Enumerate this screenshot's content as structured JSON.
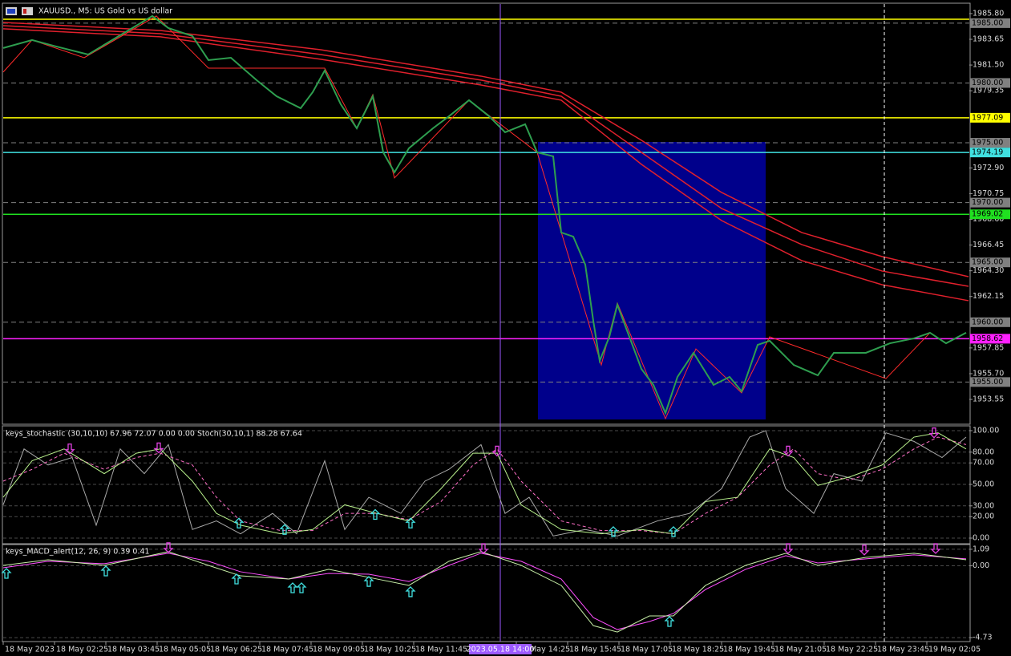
{
  "chart_data": [
    {
      "type": "line",
      "title": "XAUUSD., M5:  US Gold vs US dollar",
      "xlim": [
        0,
        301.25
      ],
      "ylim": [
        1951.54,
        1986.6
      ],
      "yticks": [
        {
          "value": 1985.8,
          "label": "1985.80"
        },
        1983.65,
        {
          "value": 1981.5,
          "label": "1981.50"
        },
        1979.35,
        {
          "value": 1972.9,
          "label": "1972.90"
        },
        1970.75,
        {
          "value": 1968.6,
          "label": "1968.60"
        },
        1966.45,
        {
          "value": 1964.3,
          "label": "1964.30"
        },
        1962.15,
        1957.85,
        {
          "value": 1955.7,
          "label": "1955.70"
        },
        1953.55
      ],
      "xticks": [
        {
          "value": 0,
          "label": "18 May 2023"
        },
        {
          "value": 16,
          "label": "18 May 02:25"
        },
        {
          "value": 32,
          "label": "18 May 03:45"
        },
        {
          "value": 48,
          "label": "18 May 05:05"
        },
        {
          "value": 64,
          "label": "18 May 06:25"
        },
        {
          "value": 80,
          "label": "18 May 07:45"
        },
        {
          "value": 96,
          "label": "18 May 09:05"
        },
        {
          "value": 112,
          "label": "18 May 10:25"
        },
        {
          "value": 128,
          "label": "18 May 11:45"
        },
        {
          "value": 160,
          "label": "18 May 14:25"
        },
        {
          "value": 176,
          "label": "18 May 15:45"
        },
        {
          "value": 192,
          "label": "18 May 17:05"
        },
        {
          "value": 208,
          "label": "18 May 18:25"
        },
        {
          "value": 224,
          "label": "18 May 19:45"
        },
        {
          "value": 240,
          "label": "18 May 21:05"
        },
        {
          "value": 256,
          "label": "18 May 22:25"
        },
        {
          "value": 272,
          "label": "18 May 23:45"
        },
        {
          "value": 288,
          "label": "19 May 02:05"
        }
      ],
      "zones": [
        {
          "x": [
            166.75,
            237.75
          ],
          "y": [
            1951.87,
            1975.07
          ],
          "color": "#00008b"
        }
      ],
      "levels": [
        {
          "value": 1985.33,
          "color": "#ffff00",
          "style": "solid"
        },
        {
          "value": 1985,
          "label": "1985.00",
          "color": "#808080",
          "style": "dash"
        },
        {
          "value": 1980,
          "label": "1980.00",
          "color": "#808080",
          "style": "dash"
        },
        {
          "value": 1977.09,
          "label": "1977.09",
          "color": "#ffff00",
          "style": "solid"
        },
        {
          "value": 1975,
          "label": "1975.00",
          "color": "#808080",
          "style": "dash"
        },
        {
          "value": 1974.19,
          "label": "1974.19",
          "color": "#40e0e0",
          "style": "solid"
        },
        {
          "value": 1970,
          "label": "1970.00",
          "color": "#808080",
          "style": "dash"
        },
        {
          "value": 1969.02,
          "label": "1969.02",
          "color": "#20e020",
          "style": "solid"
        },
        {
          "value": 1965,
          "label": "1965.00",
          "color": "#808080",
          "style": "dash"
        },
        {
          "value": 1960,
          "label": "1960.00",
          "color": "#808080",
          "style": "dash"
        },
        {
          "value": 1958.62,
          "label": "1958.62",
          "color": "#ff20ff",
          "style": "solid"
        },
        {
          "value": 1955,
          "label": "1955.00",
          "color": "#808080",
          "style": "dash"
        }
      ],
      "vlines": [
        {
          "x": 155,
          "color": "#9b59ff",
          "style": "solid",
          "label": "2023.05.18 14:00"
        },
        {
          "x": 274.75,
          "color": "#ffffff",
          "style": "dash"
        }
      ],
      "series": [
        {
          "color": "#e0202c",
          "width": 1.5,
          "x": [
            0,
            49,
            99,
            149,
            174,
            199,
            224,
            249,
            274,
            301
          ],
          "values": [
            1985.06,
            1984.39,
            1982.78,
            1980.57,
            1979.23,
            1975.21,
            1970.85,
            1967.5,
            1965.49,
            1963.81
          ]
        },
        {
          "color": "#e0202c",
          "width": 1.5,
          "x": [
            0,
            49,
            99,
            149,
            174,
            199,
            224,
            249,
            274,
            301
          ],
          "values": [
            1984.79,
            1984.12,
            1982.38,
            1980.24,
            1978.89,
            1974.2,
            1969.51,
            1966.49,
            1964.28,
            1963.0
          ]
        },
        {
          "color": "#e0202c",
          "width": 1.5,
          "x": [
            0,
            49,
            99,
            149,
            174,
            199,
            224,
            249,
            274,
            301
          ],
          "values": [
            1984.53,
            1983.86,
            1981.98,
            1979.83,
            1978.56,
            1973.2,
            1968.5,
            1965.15,
            1963.14,
            1961.8
          ]
        },
        {
          "color": "#ff2a2a",
          "width": 1,
          "x": [
            0,
            9,
            25.25,
            47.75,
            64,
            100.25,
            110.25,
            115.25,
            122,
            145.25,
            166.5,
            186.5,
            191.5,
            206.5,
            216,
            230.25,
            239,
            275.25,
            289
          ],
          "values": [
            1980.91,
            1983.59,
            1982.11,
            1985.6,
            1981.24,
            1981.24,
            1976.21,
            1979.03,
            1972.06,
            1978.56,
            1974.2,
            1956.43,
            1961.6,
            1951.94,
            1957.77,
            1954.09,
            1958.78,
            1955.29,
            1959.12
          ]
        },
        {
          "color": "#2e9e4f",
          "width": 2,
          "x": [
            0,
            9,
            16.5,
            26.5,
            34,
            40.25,
            46.5,
            51.5,
            59,
            64,
            71,
            79,
            85.25,
            92.75,
            96.5,
            100.25,
            105.25,
            110.25,
            115.25,
            118.5,
            122,
            126.5,
            134,
            139,
            145.25,
            151.5,
            156.5,
            162.75,
            166.5,
            171.5,
            174,
            177.75,
            181.5,
            184,
            186,
            189,
            191.5,
            195.25,
            199,
            202.75,
            206.5,
            210.25,
            215.25,
            221.5,
            226.5,
            230.25,
            235.25,
            239,
            246.5,
            254,
            259,
            269,
            276.5,
            284,
            289,
            294,
            300.25
          ],
          "values": [
            1982.92,
            1983.59,
            1983.05,
            1982.38,
            1983.59,
            1984.59,
            1985.6,
            1984.59,
            1983.92,
            1981.91,
            1982.11,
            1980.24,
            1978.89,
            1977.89,
            1979.23,
            1981.04,
            1978.22,
            1976.21,
            1978.89,
            1974.2,
            1972.53,
            1974.54,
            1976.21,
            1977.22,
            1978.56,
            1977.22,
            1975.88,
            1976.55,
            1974.2,
            1973.87,
            1967.5,
            1967.16,
            1964.81,
            1960.12,
            1956.77,
            1958.78,
            1961.46,
            1958.78,
            1956.1,
            1954.76,
            1952.41,
            1955.43,
            1957.44,
            1954.76,
            1955.43,
            1954.22,
            1958.11,
            1958.45,
            1956.43,
            1955.56,
            1957.44,
            1957.44,
            1958.24,
            1958.65,
            1959.12,
            1958.24,
            1959.12
          ]
        }
      ]
    },
    {
      "type": "line",
      "title": "keys_stochastic (30,10,10) 67.96 72.07 0.00 0.00 Stoch(30,10,1) 88.28 67.64",
      "xlim": [
        0,
        301.25
      ],
      "ylim": [
        -4.48,
        103.73
      ],
      "grid": true,
      "yticks": [
        {
          "value": 100,
          "label": "100.00"
        },
        {
          "value": 80,
          "label": "80.00"
        },
        {
          "value": 70,
          "label": "70.00"
        },
        {
          "value": 50,
          "label": "50.00"
        },
        {
          "value": 30,
          "label": "30.00"
        },
        {
          "value": 20,
          "label": "20.00"
        },
        {
          "value": 0,
          "label": "0.00"
        }
      ],
      "series": [
        {
          "color": "#a9a9a9",
          "width": 1,
          "x": [
            0,
            6.5,
            14,
            21.5,
            29,
            36.5,
            44,
            51.5,
            59,
            66.5,
            74,
            84,
            91.5,
            100.25,
            106.5,
            114,
            124,
            131.5,
            139,
            149,
            156.5,
            164,
            171.5,
            181.5,
            191.5,
            204,
            214,
            224,
            232.75,
            237.75,
            244,
            252.75,
            259,
            267.75,
            275.25,
            284,
            292.75,
            300.25
          ],
          "values": [
            31,
            83,
            68,
            75,
            12,
            83,
            60,
            87,
            8,
            16,
            4,
            23,
            4,
            72,
            8,
            38,
            23,
            53,
            64,
            87,
            23,
            38,
            2,
            8,
            2,
            16,
            23,
            46,
            94,
            100,
            46,
            23,
            60,
            53,
            98,
            90,
            75,
            94
          ]
        },
        {
          "color": "#ff6ec7",
          "width": 1,
          "style": "dash",
          "x": [
            0,
            9,
            19,
            31.5,
            41.5,
            49,
            59,
            66.5,
            74,
            86.5,
            96.5,
            106.5,
            116.5,
            126.5,
            136.5,
            146.5,
            154,
            161.5,
            174,
            186.5,
            199,
            209,
            219,
            229,
            239,
            246.5,
            254,
            264,
            274,
            284,
            291.5,
            300.25
          ],
          "values": [
            53,
            64,
            79,
            64,
            75,
            79,
            68,
            38,
            16,
            7,
            7,
            23,
            23,
            17,
            34,
            68,
            83,
            53,
            16,
            7,
            7,
            4,
            23,
            38,
            68,
            83,
            60,
            54,
            64,
            83,
            94,
            87
          ]
        },
        {
          "color": "#b8f08c",
          "width": 1,
          "x": [
            0,
            9,
            19,
            31.5,
            41.5,
            49,
            59,
            66.5,
            74,
            86.5,
            96.5,
            106.5,
            116.5,
            126.5,
            136.5,
            146.5,
            154,
            161.5,
            174,
            186.5,
            199,
            209,
            219,
            229,
            239,
            246.5,
            254,
            264,
            274,
            284,
            291.5,
            300.25
          ],
          "values": [
            38,
            72,
            83,
            60,
            79,
            83,
            53,
            23,
            12,
            4,
            8,
            31,
            23,
            16,
            46,
            79,
            79,
            31,
            8,
            4,
            8,
            4,
            34,
            38,
            83,
            75,
            49,
            57,
            68,
            94,
            98,
            83
          ]
        },
        {
          "color": "#e040e0",
          "marker": "arrow-down",
          "x": [
            20.75,
            48.5,
            154,
            244.75,
            290.25
          ],
          "values": [
            83,
            84,
            81,
            81,
            98
          ]
        },
        {
          "color": "#40e0e0",
          "marker": "arrow-up",
          "x": [
            73.5,
            87.75,
            116,
            127,
            190.25,
            209
          ],
          "values": [
            14,
            8,
            22,
            14,
            6,
            6
          ]
        }
      ]
    },
    {
      "type": "line",
      "title": "keys_MACD_alert(12, 26, 9) 0.39 0.41",
      "xlim": [
        0,
        301.25
      ],
      "ylim": [
        -4.99,
        1.35
      ],
      "grid": true,
      "yticks": [
        1.09,
        {
          "value": 0,
          "label": "0.00"
        },
        -4.73
      ],
      "series": [
        {
          "color": "#ff50ff",
          "width": 1,
          "x": [
            0,
            14,
            31.5,
            51.5,
            64,
            74,
            89,
            101.5,
            114,
            126.5,
            139,
            149,
            161.5,
            174,
            184,
            191.5,
            201.5,
            209,
            219,
            231.5,
            244,
            254,
            269,
            284,
            300.25
          ],
          "values": [
            -0.13,
            0.3,
            0.14,
            0.83,
            0.3,
            -0.39,
            -0.87,
            -0.5,
            -0.55,
            -1.03,
            0.03,
            0.83,
            0.3,
            -0.87,
            -3.41,
            -4.2,
            -3.67,
            -3.14,
            -1.56,
            -0.23,
            0.67,
            0.19,
            0.46,
            0.72,
            0.46
          ]
        },
        {
          "color": "#c8f0a8",
          "width": 1,
          "x": [
            0,
            14,
            31.5,
            51.5,
            64,
            74,
            89,
            101.5,
            114,
            126.5,
            139,
            149,
            161.5,
            174,
            184,
            191.5,
            201.5,
            209,
            219,
            231.5,
            244,
            254,
            269,
            284,
            300.25
          ],
          "values": [
            0.03,
            0.4,
            0.03,
            0.93,
            0.03,
            -0.66,
            -0.87,
            -0.23,
            -0.76,
            -1.29,
            0.3,
            0.93,
            0.03,
            -1.29,
            -3.94,
            -4.36,
            -3.3,
            -3.3,
            -1.29,
            0.03,
            0.83,
            0.03,
            0.56,
            0.83,
            0.4
          ]
        },
        {
          "color": "#40e0e0",
          "marker": "arrow-up",
          "x": [
            1,
            32,
            72.75,
            90.25,
            93,
            114,
            127,
            207.75
          ],
          "values": [
            -0.5,
            -0.34,
            -0.87,
            -1.45,
            -1.45,
            -1.03,
            -1.71,
            -3.67
          ]
        },
        {
          "color": "#e040e0",
          "marker": "arrow-down",
          "x": [
            51.5,
            149.75,
            244.75,
            268.5,
            290.75
          ],
          "values": [
            1.2,
            1.14,
            1.14,
            1.04,
            1.14
          ]
        }
      ]
    }
  ]
}
